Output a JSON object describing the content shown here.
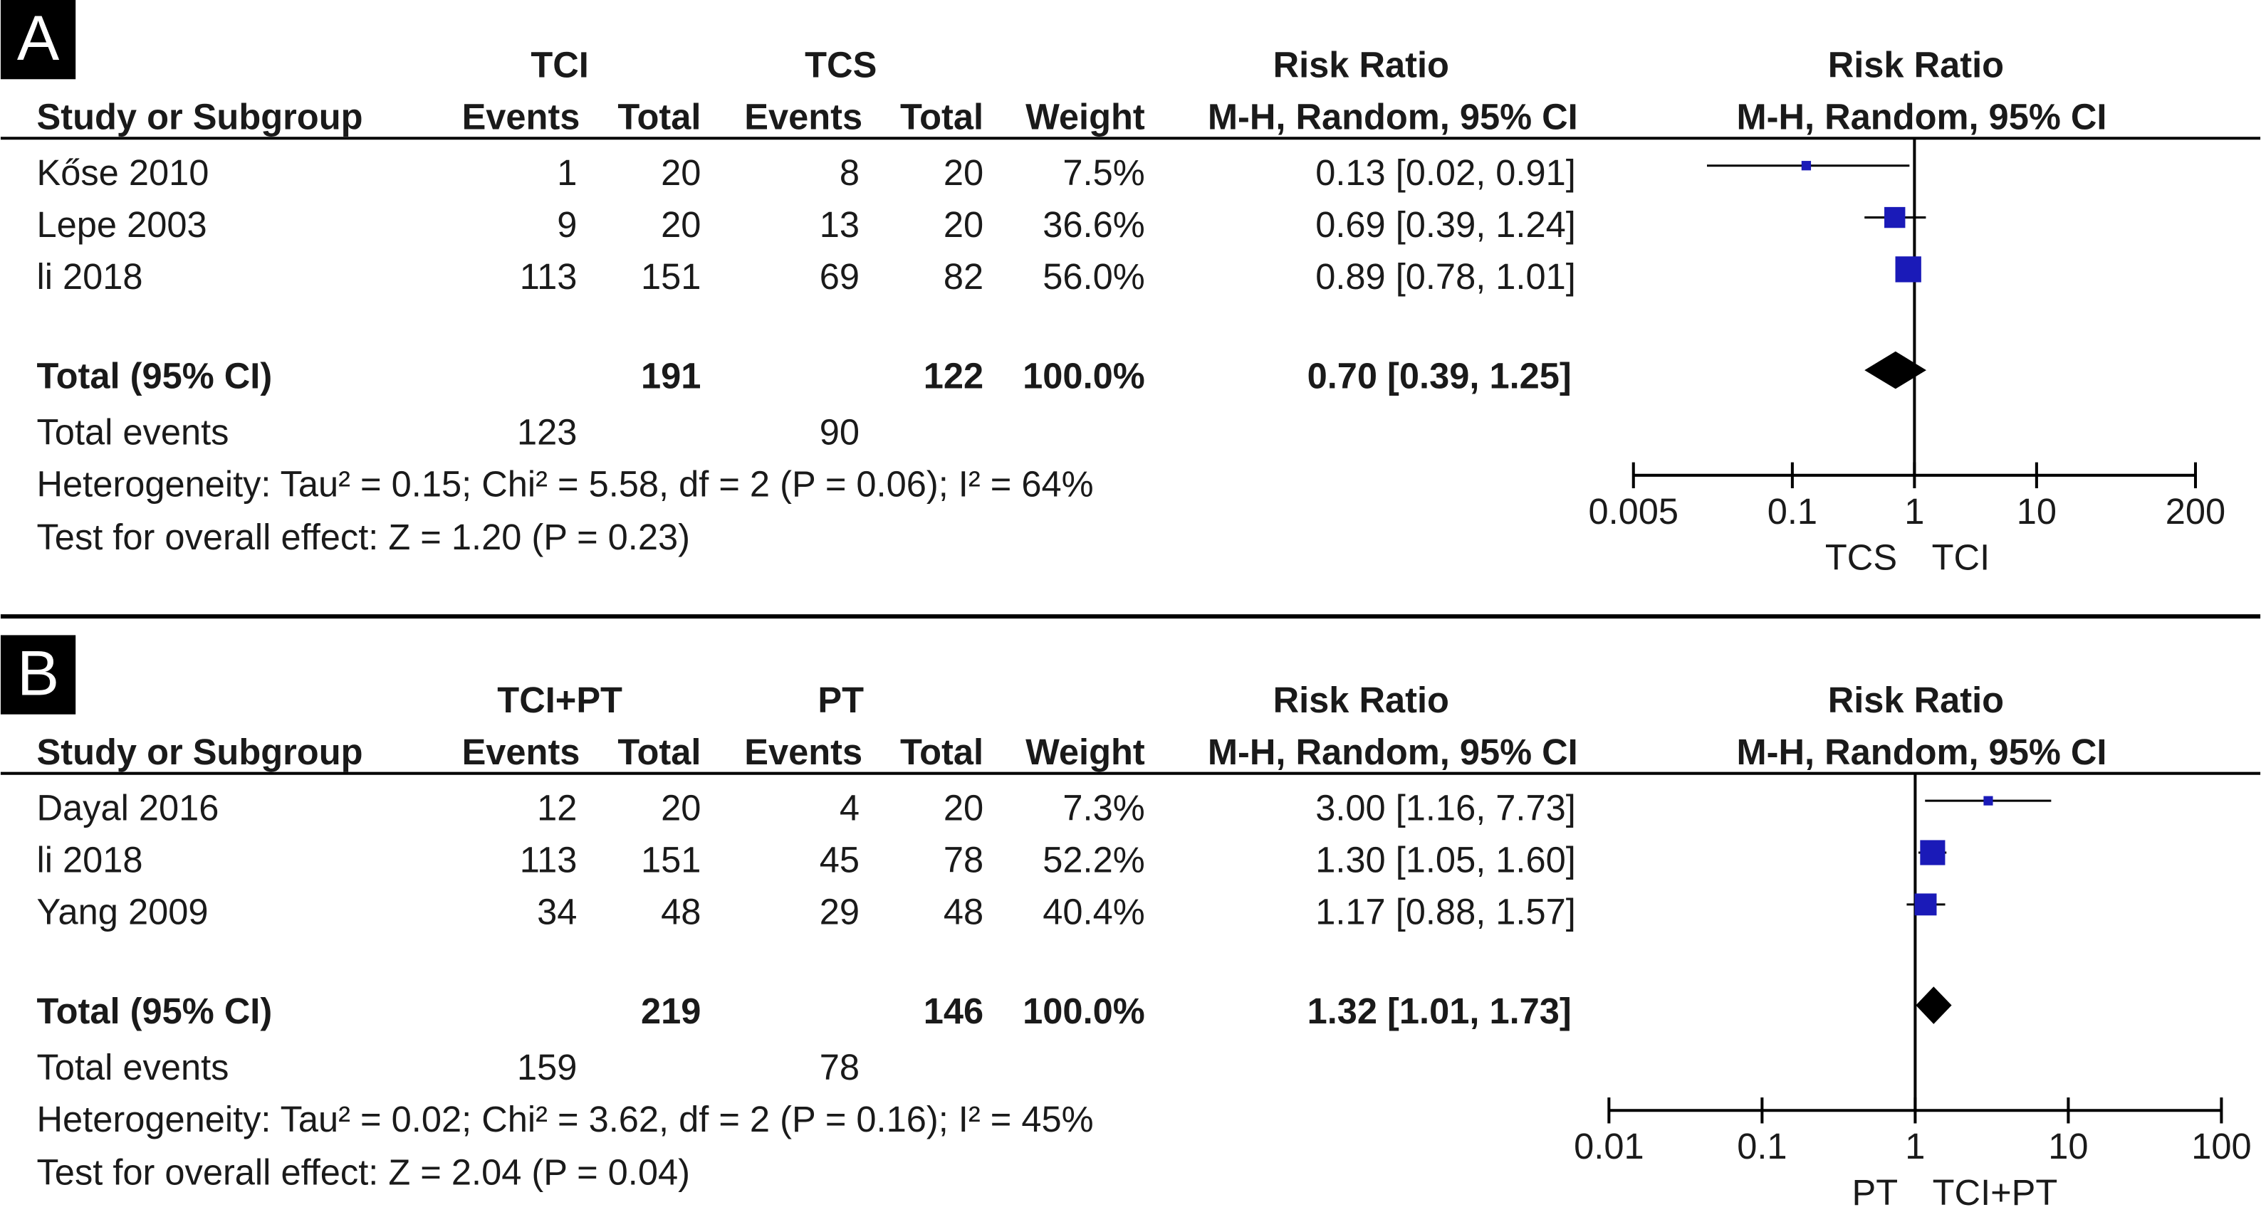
{
  "chart_data": [
    {
      "type": "forest",
      "panel_label": "A",
      "group1": "TCI",
      "group2": "TCS",
      "columns": [
        "Study or Subgroup",
        "Events",
        "Total",
        "Events",
        "Total",
        "Weight"
      ],
      "effect_header": "Risk Ratio",
      "effect_method": "M-H, Random, 95% CI",
      "plot_header": "Risk Ratio",
      "plot_method": "M-H, Random, 95% CI",
      "studies": [
        {
          "name": "Kőse 2010",
          "events1": 1,
          "total1": 20,
          "events2": 8,
          "total2": 20,
          "weight": 7.5,
          "weight_label": "7.5%",
          "rr": 0.13,
          "ci": [
            0.02,
            0.91
          ],
          "rr_label": "0.13 [0.02, 0.91]"
        },
        {
          "name": "Lepe 2003",
          "events1": 9,
          "total1": 20,
          "events2": 13,
          "total2": 20,
          "weight": 36.6,
          "weight_label": "36.6%",
          "rr": 0.69,
          "ci": [
            0.39,
            1.24
          ],
          "rr_label": "0.69 [0.39, 1.24]"
        },
        {
          "name": "li 2018",
          "events1": 113,
          "total1": 151,
          "events2": 69,
          "total2": 82,
          "weight": 56.0,
          "weight_label": "56.0%",
          "rr": 0.89,
          "ci": [
            0.78,
            1.01
          ],
          "rr_label": "0.89 [0.78, 1.01]"
        }
      ],
      "overall": {
        "name": "Total (95% CI)",
        "total1": 191,
        "total2": 122,
        "weight": 100,
        "weight_label": "100.0%",
        "rr": 0.7,
        "ci": [
          0.39,
          1.25
        ],
        "rr_label": "0.70 [0.39, 1.25]"
      },
      "total_events": {
        "name": "Total events",
        "events1": 123,
        "events2": 90
      },
      "heterogeneity": "Heterogeneity: Tau² = 0.15; Chi² = 5.58, df = 2 (P = 0.06); I² = 64%",
      "overall_test": "Test for overall effect: Z = 1.20 (P = 0.23)",
      "log_scale": true,
      "xlim": [
        0.005,
        200
      ],
      "xticks": [
        0.005,
        0.1,
        1,
        10,
        200
      ],
      "favours_left": "TCS",
      "favours_right": "TCI",
      "marker_color": "#1a1ab8",
      "diamond_color": "#000000"
    },
    {
      "type": "forest",
      "panel_label": "B",
      "group1": "TCI+PT",
      "group2": "PT",
      "columns": [
        "Study or Subgroup",
        "Events",
        "Total",
        "Events",
        "Total",
        "Weight"
      ],
      "effect_header": "Risk Ratio",
      "effect_method": "M-H, Random, 95% CI",
      "plot_header": "Risk Ratio",
      "plot_method": "M-H, Random, 95% CI",
      "studies": [
        {
          "name": "Dayal 2016",
          "events1": 12,
          "total1": 20,
          "events2": 4,
          "total2": 20,
          "weight": 7.3,
          "weight_label": "7.3%",
          "rr": 3.0,
          "ci": [
            1.16,
            7.73
          ],
          "rr_label": "3.00 [1.16, 7.73]"
        },
        {
          "name": "li 2018",
          "events1": 113,
          "total1": 151,
          "events2": 45,
          "total2": 78,
          "weight": 52.2,
          "weight_label": "52.2%",
          "rr": 1.3,
          "ci": [
            1.05,
            1.6
          ],
          "rr_label": "1.30 [1.05, 1.60]"
        },
        {
          "name": "Yang 2009",
          "events1": 34,
          "total1": 48,
          "events2": 29,
          "total2": 48,
          "weight": 40.4,
          "weight_label": "40.4%",
          "rr": 1.17,
          "ci": [
            0.88,
            1.57
          ],
          "rr_label": "1.17 [0.88, 1.57]"
        }
      ],
      "overall": {
        "name": "Total (95% CI)",
        "total1": 219,
        "total2": 146,
        "weight": 100,
        "weight_label": "100.0%",
        "rr": 1.32,
        "ci": [
          1.01,
          1.73
        ],
        "rr_label": "1.32 [1.01, 1.73]"
      },
      "total_events": {
        "name": "Total events",
        "events1": 159,
        "events2": 78
      },
      "heterogeneity": "Heterogeneity: Tau² = 0.02; Chi² = 3.62, df = 2 (P = 0.16); I² = 45%",
      "overall_test": "Test for overall effect: Z = 2.04 (P = 0.04)",
      "log_scale": true,
      "xlim": [
        0.01,
        100
      ],
      "xticks": [
        0.01,
        0.1,
        1,
        10,
        100
      ],
      "favours_left": "PT",
      "favours_right": "TCI+PT",
      "marker_color": "#1a1ab8",
      "diamond_color": "#000000"
    }
  ]
}
